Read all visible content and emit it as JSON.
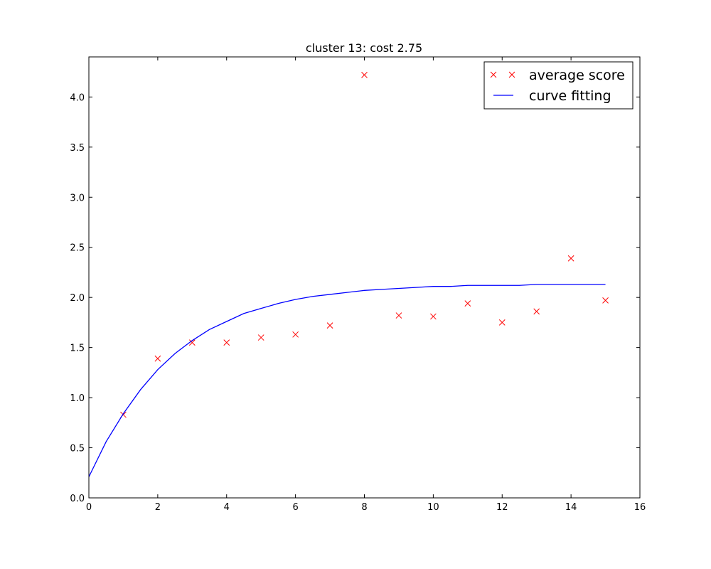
{
  "chart_data": {
    "type": "scatter",
    "title": "cluster 13: cost 2.75",
    "xlabel": "",
    "ylabel": "",
    "xlim": [
      0,
      16
    ],
    "ylim": [
      0,
      4.4
    ],
    "xticks": [
      0,
      2,
      4,
      6,
      8,
      10,
      12,
      14,
      16
    ],
    "xtick_labels": [
      "0",
      "2",
      "4",
      "6",
      "8",
      "10",
      "12",
      "14",
      "16"
    ],
    "yticks": [
      0,
      0.5,
      1,
      1.5,
      2,
      2.5,
      3,
      3.5,
      4
    ],
    "ytick_labels": [
      "0.0",
      "0.5",
      "1.0",
      "1.5",
      "2.0",
      "2.5",
      "3.0",
      "3.5",
      "4.0"
    ],
    "grid": false,
    "legend_position": "top-right",
    "series": [
      {
        "name": "average score",
        "kind": "markers",
        "marker": "x",
        "color": "#ff0000",
        "x": [
          1,
          2,
          3,
          4,
          5,
          6,
          7,
          8,
          9,
          10,
          11,
          12,
          13,
          14,
          15
        ],
        "y": [
          0.83,
          1.39,
          1.55,
          1.55,
          1.6,
          1.63,
          1.72,
          4.22,
          1.82,
          1.81,
          1.94,
          1.75,
          1.86,
          2.39,
          1.97
        ]
      },
      {
        "name": "curve fitting",
        "kind": "line",
        "color": "#0000ff",
        "x": [
          0,
          0.5,
          1,
          1.5,
          2,
          2.5,
          3,
          3.5,
          4,
          4.5,
          5,
          5.5,
          6,
          6.5,
          7,
          7.5,
          8,
          8.5,
          9,
          9.5,
          10,
          10.5,
          11,
          11.5,
          12,
          12.5,
          13,
          13.5,
          14,
          14.5,
          15
        ],
        "y": [
          0.21,
          0.56,
          0.84,
          1.08,
          1.28,
          1.44,
          1.57,
          1.68,
          1.76,
          1.84,
          1.89,
          1.94,
          1.98,
          2.01,
          2.03,
          2.05,
          2.07,
          2.08,
          2.09,
          2.1,
          2.11,
          2.11,
          2.12,
          2.12,
          2.12,
          2.12,
          2.13,
          2.13,
          2.13,
          2.13,
          2.13
        ]
      }
    ]
  }
}
